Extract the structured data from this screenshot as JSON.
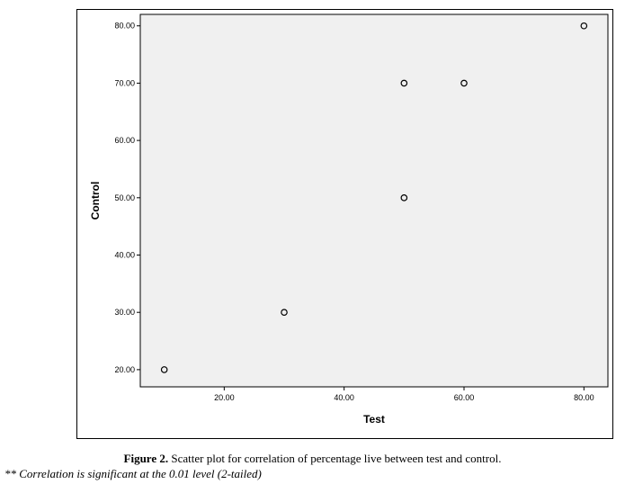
{
  "chart_data": {
    "type": "scatter",
    "xlabel": "Test",
    "ylabel": "Control",
    "xlim": [
      6,
      84
    ],
    "ylim": [
      17,
      82
    ],
    "x_ticks": [
      20,
      40,
      60,
      80
    ],
    "x_tick_labels": [
      "20.00",
      "40.00",
      "60.00",
      "80.00"
    ],
    "y_ticks": [
      20,
      30,
      40,
      50,
      60,
      70,
      80
    ],
    "y_tick_labels": [
      "20.00",
      "30.00",
      "40.00",
      "50.00",
      "60.00",
      "70.00",
      "80.00"
    ],
    "points": [
      {
        "x": 10,
        "y": 20
      },
      {
        "x": 30,
        "y": 30
      },
      {
        "x": 50,
        "y": 50
      },
      {
        "x": 50,
        "y": 70
      },
      {
        "x": 60,
        "y": 70
      },
      {
        "x": 80,
        "y": 80
      }
    ],
    "grid": false,
    "colors": {
      "plot_background": "#f0f0f0",
      "marker_stroke": "#000000"
    }
  },
  "caption": {
    "label": "Figure 2.",
    "text": " Scatter plot for correlation of percentage live between test and control."
  },
  "footnote": "** Correlation is significant at the 0.01 level (2-tailed)"
}
